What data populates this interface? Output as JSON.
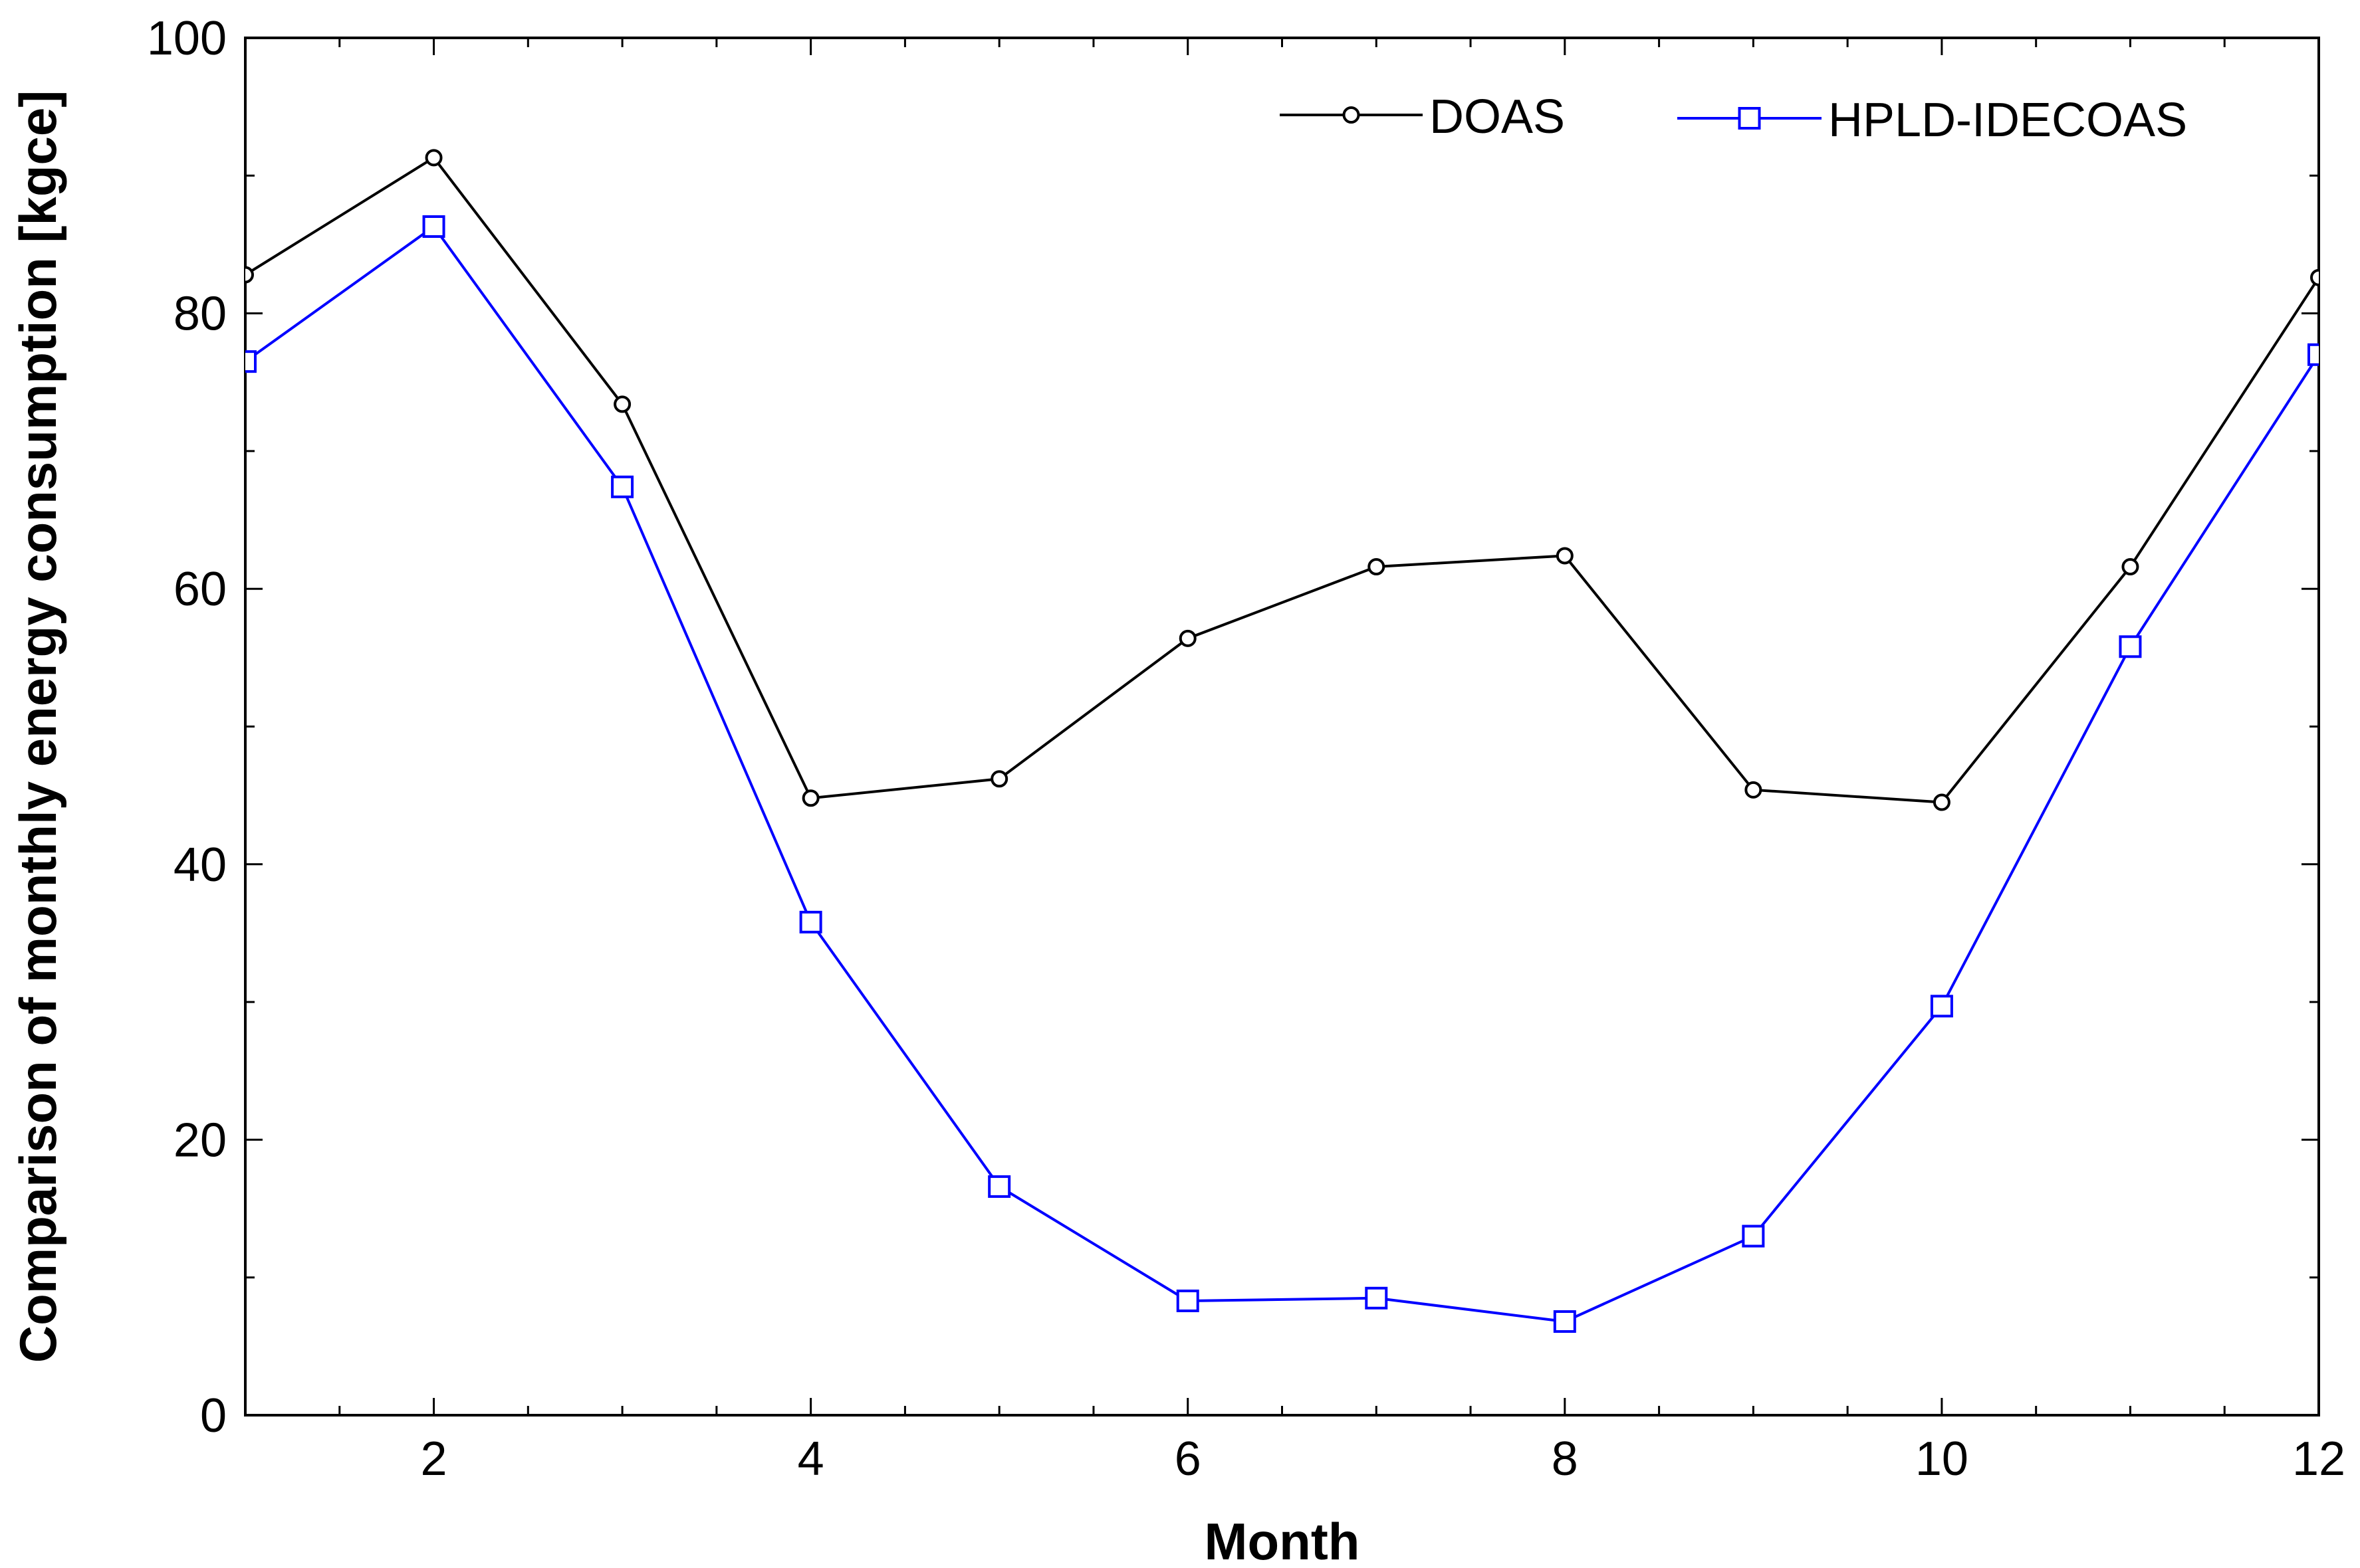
{
  "chart_data": {
    "type": "line",
    "xlabel": "Month",
    "ylabel": "Comparison of monthly energy consumption [kgce]",
    "xlim": [
      1,
      12
    ],
    "ylim": [
      0,
      100
    ],
    "x_ticks": [
      2,
      4,
      6,
      8,
      10,
      12
    ],
    "x_tick_labels": [
      "2",
      "4",
      "6",
      "8",
      "10",
      "12"
    ],
    "y_ticks": [
      0,
      20,
      40,
      60,
      80,
      100
    ],
    "y_tick_labels": [
      "0",
      "20",
      "40",
      "60",
      "80",
      "100"
    ],
    "grid": false,
    "legend_position": "top-right",
    "x": [
      1,
      2,
      3,
      4,
      5,
      6,
      7,
      8,
      9,
      10,
      11,
      12
    ],
    "series": [
      {
        "name": "DOAS",
        "marker": "circle",
        "color": "#000000",
        "values": [
          82.8,
          91.3,
          73.4,
          44.8,
          46.2,
          56.4,
          61.6,
          62.4,
          45.4,
          44.5,
          61.6,
          82.6
        ]
      },
      {
        "name": "HPLD-IDECOAS",
        "marker": "square",
        "color": "#0000ff",
        "values": [
          76.5,
          86.3,
          67.4,
          35.8,
          16.6,
          8.3,
          8.5,
          6.8,
          13.0,
          29.7,
          55.8,
          77.0
        ]
      }
    ]
  }
}
